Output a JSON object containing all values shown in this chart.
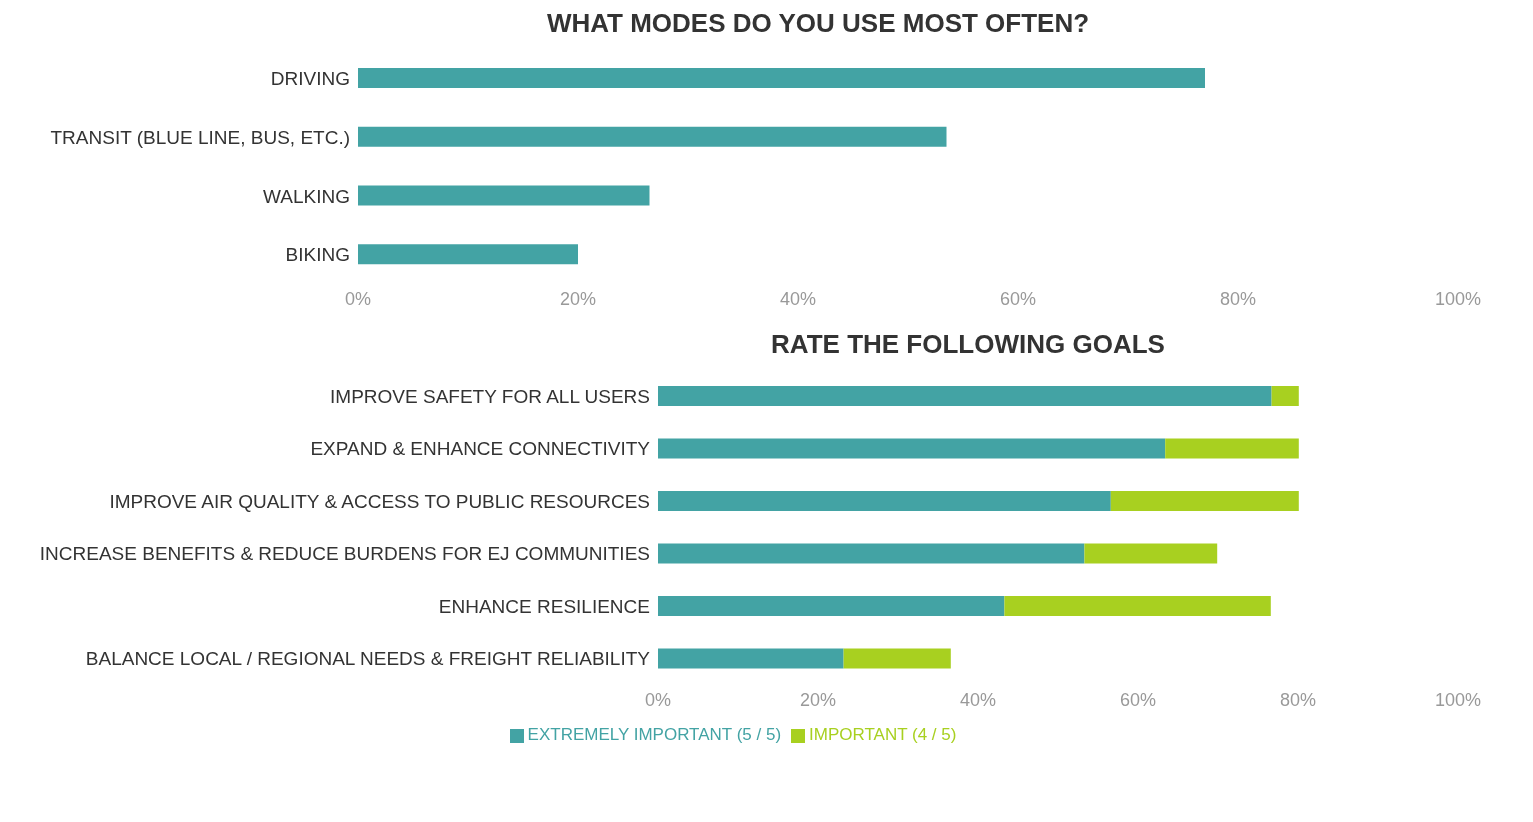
{
  "chart_data": [
    {
      "type": "bar",
      "orientation": "horizontal",
      "title": "WHAT MODES DO YOU USE MOST OFTEN?",
      "categories": [
        "DRIVING",
        "TRANSIT (BLUE LINE, BUS, ETC.)",
        "WALKING",
        "BIKING"
      ],
      "values": [
        77,
        53.5,
        26.5,
        20
      ],
      "color": "#43a3a4",
      "xlim": [
        0,
        100
      ],
      "xticks": [
        {
          "value": 0,
          "label": "0%"
        },
        {
          "value": 20,
          "label": "20%"
        },
        {
          "value": 40,
          "label": "40%"
        },
        {
          "value": 60,
          "label": "60%"
        },
        {
          "value": 80,
          "label": "80%"
        },
        {
          "value": 100,
          "label": "100%"
        }
      ]
    },
    {
      "type": "bar",
      "orientation": "horizontal",
      "stacked": true,
      "title": "RATE THE FOLLOWING GOALS",
      "categories": [
        "IMPROVE SAFETY FOR ALL USERS",
        "EXPAND & ENHANCE CONNECTIVITY",
        "IMPROVE AIR QUALITY & ACCESS TO PUBLIC RESOURCES",
        "INCREASE BENEFITS & REDUCE BURDENS FOR EJ COMMUNITIES",
        "ENHANCE RESILIENCE",
        "BALANCE LOCAL / REGIONAL NEEDS & FREIGHT RELIABILITY"
      ],
      "series": [
        {
          "name": "EXTREMELY IMPORTANT (5 / 5)",
          "color": "#43a3a4",
          "values": [
            76.7,
            63.4,
            56.6,
            53.3,
            43.3,
            23.2
          ]
        },
        {
          "name": "IMPORTANT (4 / 5)",
          "color": "#a8d020",
          "values": [
            3.4,
            16.7,
            23.5,
            16.6,
            33.3,
            13.4
          ]
        }
      ],
      "legend": "bottom",
      "xlim": [
        0,
        100
      ],
      "xticks": [
        {
          "value": 0,
          "label": "0%"
        },
        {
          "value": 20,
          "label": "20%"
        },
        {
          "value": 40,
          "label": "40%"
        },
        {
          "value": 60,
          "label": "60%"
        },
        {
          "value": 80,
          "label": "80%"
        },
        {
          "value": 100,
          "label": "100%"
        }
      ]
    }
  ]
}
